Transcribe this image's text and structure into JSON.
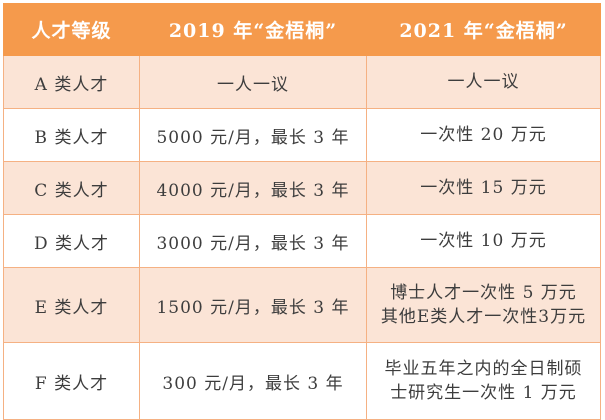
{
  "header": {
    "col_level": "人才等级",
    "col_2019": "2019 年“金梧桐”",
    "col_2021": "2021 年“金梧桐”"
  },
  "rows": [
    {
      "level": "A 类人才",
      "y2019": "一人一议",
      "y2021": [
        "一人一议"
      ]
    },
    {
      "level": "B 类人才",
      "y2019": "5000 元/月，最长 3 年",
      "y2021": [
        "一次性 20 万元"
      ]
    },
    {
      "level": "C 类人才",
      "y2019": "4000 元/月，最长 3 年",
      "y2021": [
        "一次性 15 万元"
      ]
    },
    {
      "level": "D 类人才",
      "y2019": "3000 元/月，最长 3 年",
      "y2021": [
        "一次性 10 万元"
      ]
    },
    {
      "level": "E 类人才",
      "y2019": "1500 元/月，最长 3 年",
      "y2021": [
        "博士人才一次性 5 万元",
        "其他E类人才一次性3万元"
      ]
    },
    {
      "level": "F 类人才",
      "y2019": "300 元/月，最长 3 年",
      "y2021": [
        "毕业五年之内的全日制硕",
        "士研究生一次性 1 万元"
      ]
    }
  ],
  "colors": {
    "header_bg": "#f59a4c",
    "odd_row_bg": "#fbe4d6",
    "border": "#f5b183",
    "header_text": "#ffffff"
  }
}
